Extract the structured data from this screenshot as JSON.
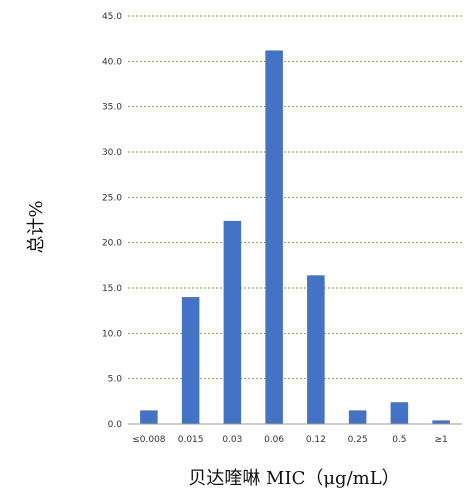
{
  "chart_data": {
    "type": "bar",
    "title": "",
    "xlabel": "贝达喹啉 MIC（μg/mL）",
    "ylabel": "总计%",
    "categories": [
      "≤0.008",
      "0.015",
      "0.03",
      "0.06",
      "0.12",
      "0.25",
      "0.5",
      "≥1"
    ],
    "values": [
      1.5,
      14.0,
      22.4,
      41.2,
      16.4,
      1.5,
      2.4,
      0.4
    ],
    "ylim": [
      0,
      45
    ],
    "yticks": [
      "0.0",
      "5.0",
      "10.0",
      "15.0",
      "20.0",
      "25.0",
      "30.0",
      "35.0",
      "40.0",
      "45.0"
    ],
    "grid": true,
    "bar_color": "#4472C4",
    "grid_color": "#7FA62E"
  }
}
